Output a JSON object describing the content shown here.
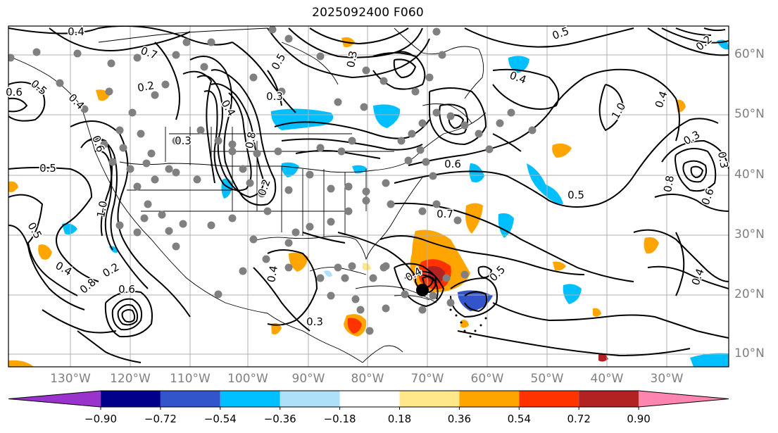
{
  "title": "2025092400 F060",
  "lon_labels": [
    "130°W",
    "120°W",
    "110°W",
    "100°W",
    "90°W",
    "80°W",
    "70°W",
    "60°W",
    "50°W",
    "40°W",
    "30°W"
  ],
  "lat_labels": [
    "60°N",
    "50°N",
    "40°N",
    "30°N",
    "20°N",
    "10°N"
  ],
  "contour_labels": [
    "0.4",
    "0.7",
    "0.2",
    "0.5",
    "0.3",
    "0.5",
    "0.4",
    "0.6",
    "0.3",
    "0.8",
    "0.4",
    "0.2",
    "0.6",
    "0.5",
    "0.4",
    "0.2",
    "1.0",
    "0.8",
    "0.6",
    "0.4",
    "0.3",
    "0.3",
    "0.5",
    "0.4",
    "0.7",
    "0.5",
    "0.4",
    "0.6",
    "0.5",
    "1.0",
    "0.3",
    "0.4",
    "0.8",
    "0.6",
    "0.4",
    "0.5",
    "0.2",
    "0.3"
  ],
  "colorbar": {
    "ticks": [
      "−0.90",
      "−0.72",
      "−0.54",
      "−0.36",
      "−0.18",
      "0.18",
      "0.36",
      "0.54",
      "0.72",
      "0.90"
    ],
    "colors": [
      "#9933cc",
      "#00008b",
      "#3355cc",
      "#00bfff",
      "#aee0fa",
      "#ffffff",
      "#ffe88a",
      "#ffa500",
      "#ff3300",
      "#b22222",
      "#ff85b0"
    ]
  }
}
